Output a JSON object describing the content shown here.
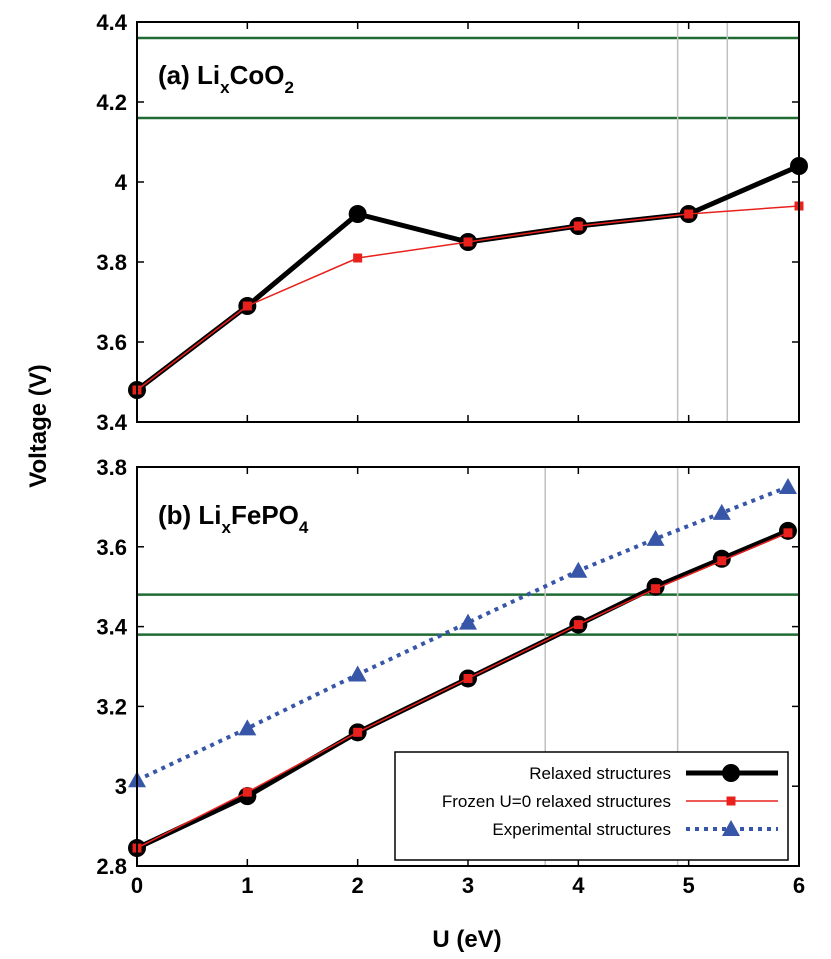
{
  "chart_data": {
    "type": "line",
    "xlabel": "U (eV)",
    "ylabel": "Voltage (V)",
    "xlim": [
      0,
      6
    ],
    "x_ticks": [
      "0",
      "1",
      "2",
      "3",
      "4",
      "5",
      "6"
    ],
    "legend": {
      "placement": "bottom-right of panel (b)",
      "entries": [
        "Relaxed structures",
        "Frozen U=0 relaxed structures",
        "Experimental structures"
      ]
    },
    "colors": {
      "relaxed": "#000000",
      "frozen": "#e8211d",
      "experimental": "#3856a8",
      "reference_lines": "#1f6b33",
      "vertical_lines": "#c0c0c0"
    },
    "panels": [
      {
        "title": "(a) Li",
        "title_sub1": "x",
        "title_mid": "CoO",
        "title_sub2": "2",
        "ylim": [
          3.4,
          4.4
        ],
        "y_ticks": [
          "3.4",
          "3.6",
          "3.8",
          "4",
          "4.2",
          "4.4"
        ],
        "horizontal_lines": [
          4.36,
          4.16
        ],
        "vertical_lines": [
          4.9,
          5.35
        ],
        "series": [
          {
            "name": "Relaxed structures",
            "x": [
              0,
              1,
              2,
              3,
              4,
              5,
              6
            ],
            "values": [
              3.48,
              3.69,
              3.92,
              3.85,
              3.89,
              3.92,
              4.04
            ]
          },
          {
            "name": "Frozen U=0 relaxed structures",
            "x": [
              0,
              1,
              2,
              3,
              4,
              5,
              6
            ],
            "values": [
              3.48,
              3.69,
              3.81,
              3.85,
              3.89,
              3.92,
              3.94
            ]
          }
        ]
      },
      {
        "title": "(b) Li",
        "title_sub1": "x",
        "title_mid": "FePO",
        "title_sub2": "4",
        "ylim": [
          2.8,
          3.8
        ],
        "y_ticks": [
          "2.8",
          "3",
          "3.2",
          "3.4",
          "3.6",
          "3.8"
        ],
        "horizontal_lines": [
          3.48,
          3.38
        ],
        "vertical_lines": [
          3.7,
          4.9
        ],
        "series": [
          {
            "name": "Relaxed structures",
            "x": [
              0,
              1,
              2,
              3,
              4,
              4.7,
              5.3,
              5.9
            ],
            "values": [
              2.845,
              2.975,
              3.135,
              3.27,
              3.405,
              3.5,
              3.57,
              3.64
            ]
          },
          {
            "name": "Frozen U=0 relaxed structures",
            "x": [
              0,
              1,
              2,
              3,
              4,
              4.7,
              5.3,
              5.9
            ],
            "values": [
              2.845,
              2.985,
              3.135,
              3.27,
              3.405,
              3.495,
              3.565,
              3.635
            ]
          },
          {
            "name": "Experimental structures",
            "x": [
              0,
              1,
              2,
              3,
              4,
              4.7,
              5.3,
              5.9
            ],
            "values": [
              3.015,
              3.145,
              3.28,
              3.41,
              3.54,
              3.62,
              3.685,
              3.75
            ]
          }
        ]
      }
    ]
  }
}
